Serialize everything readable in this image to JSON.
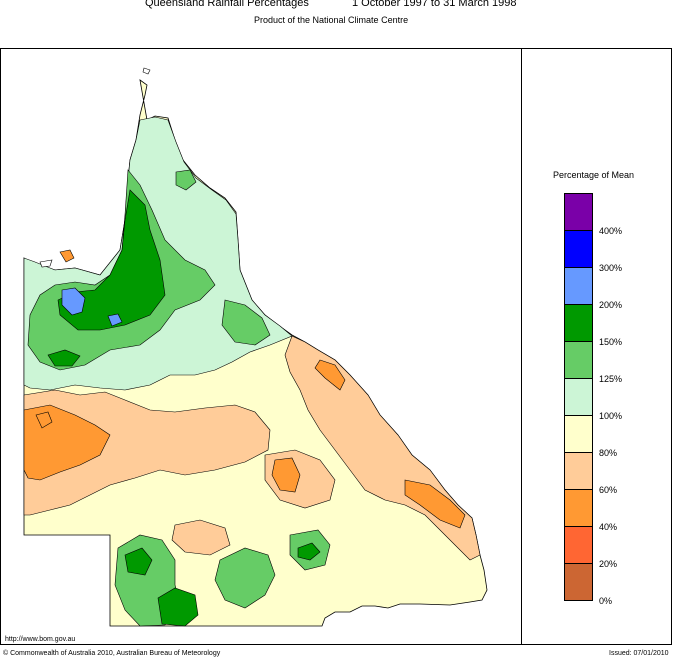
{
  "header": {
    "title": "Queensland Rainfall Percentages",
    "period": "1 October 1997 to 31 March 1998",
    "subtitle": "Product of the National Climate Centre"
  },
  "legend": {
    "title": "Percentage of Mean",
    "bins": [
      {
        "label": "400%",
        "color": "#7a00a8"
      },
      {
        "label": "300%",
        "color": "#0000ff"
      },
      {
        "label": "200%",
        "color": "#6699ff"
      },
      {
        "label": "150%",
        "color": "#009900"
      },
      {
        "label": "125%",
        "color": "#66cc66"
      },
      {
        "label": "100%",
        "color": "#ccf5d6"
      },
      {
        "label": "80%",
        "color": "#ffffcc"
      },
      {
        "label": "60%",
        "color": "#ffcc99"
      },
      {
        "label": "40%",
        "color": "#ff9933"
      },
      {
        "label": "20%",
        "color": "#ff6633"
      },
      {
        "label": "0%",
        "color": "#cc6633"
      }
    ]
  },
  "footer": {
    "url": "http://www.bom.gov.au",
    "copyright": "© Commonwealth of Australia 2010, Australian Bureau of Meteorology",
    "issued": "Issued: 07/01/2010"
  }
}
